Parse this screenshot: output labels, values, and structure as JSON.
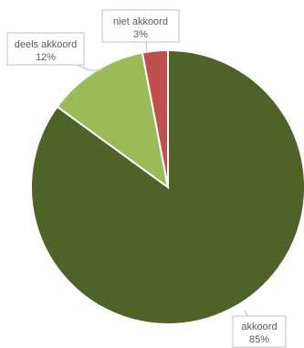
{
  "chart_data": {
    "type": "pie",
    "title": "",
    "slices": [
      {
        "category": "akkoord",
        "value": 85,
        "value_label": "85%",
        "color": "#4f6228"
      },
      {
        "category": "deels akkoord",
        "value": 12,
        "value_label": "12%",
        "color": "#9bbb59"
      },
      {
        "category": "niet akkoord",
        "value": 3,
        "value_label": "3%",
        "color": "#c0504d"
      }
    ],
    "start_angle_deg": 0,
    "direction": "clockwise",
    "legend": "none"
  }
}
